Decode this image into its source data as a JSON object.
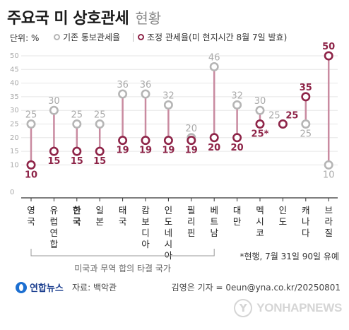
{
  "title": "주요국 미 상호관세",
  "subtitle": "현황",
  "unit_label": "단위: %",
  "legend": {
    "original": "기존 통보관세율",
    "adjusted": "조정 관세율(미 현지시간 8월 7일 발효)"
  },
  "chart_data": {
    "type": "dumbbell",
    "yticks": [
      0,
      10,
      15,
      20,
      25,
      30,
      35,
      40,
      45,
      50
    ],
    "ylim": [
      0,
      50
    ],
    "categories": [
      "영국",
      "유럽연합",
      "한국",
      "일본",
      "태국",
      "캄보디아",
      "인도네시아",
      "필리핀",
      "베트남",
      "대만",
      "멕시코",
      "인도",
      "캐나다",
      "브라질"
    ],
    "bold_category": "한국",
    "series": [
      {
        "name": "기존 통보관세율",
        "values": [
          25,
          30,
          25,
          25,
          36,
          36,
          32,
          20,
          46,
          32,
          30,
          25,
          25,
          10
        ]
      },
      {
        "name": "조정 관세율(미 현지시간 8월 7일 발효)",
        "values": [
          10,
          15,
          15,
          15,
          19,
          19,
          19,
          19,
          20,
          20,
          25,
          25,
          35,
          50
        ]
      }
    ],
    "original_labels": [
      "25",
      "30",
      "25",
      "25",
      "36",
      "36",
      "32",
      "20",
      "46",
      "32",
      "30",
      "25",
      "25",
      "10"
    ],
    "adjusted_labels": [
      "10",
      "15",
      "15",
      "15",
      "19",
      "19",
      "19",
      "19",
      "20",
      "20",
      "25*",
      "25",
      "35",
      "50"
    ],
    "bracket_label": "미국과 무역 합의 타결 국가"
  },
  "colors": {
    "adjusted": "#8e2448",
    "original": "#b5b5b5",
    "connector": "#c98aa0",
    "grid": "#e6e6e6"
  },
  "note": "*현행, 7월 31일 90일 유예",
  "brand": "연합뉴스",
  "source": "자료: 백악관",
  "credit": "김영은 기자 = 0eun@yna.co.kr/20250801",
  "watermark": "YONHAPNEWS"
}
